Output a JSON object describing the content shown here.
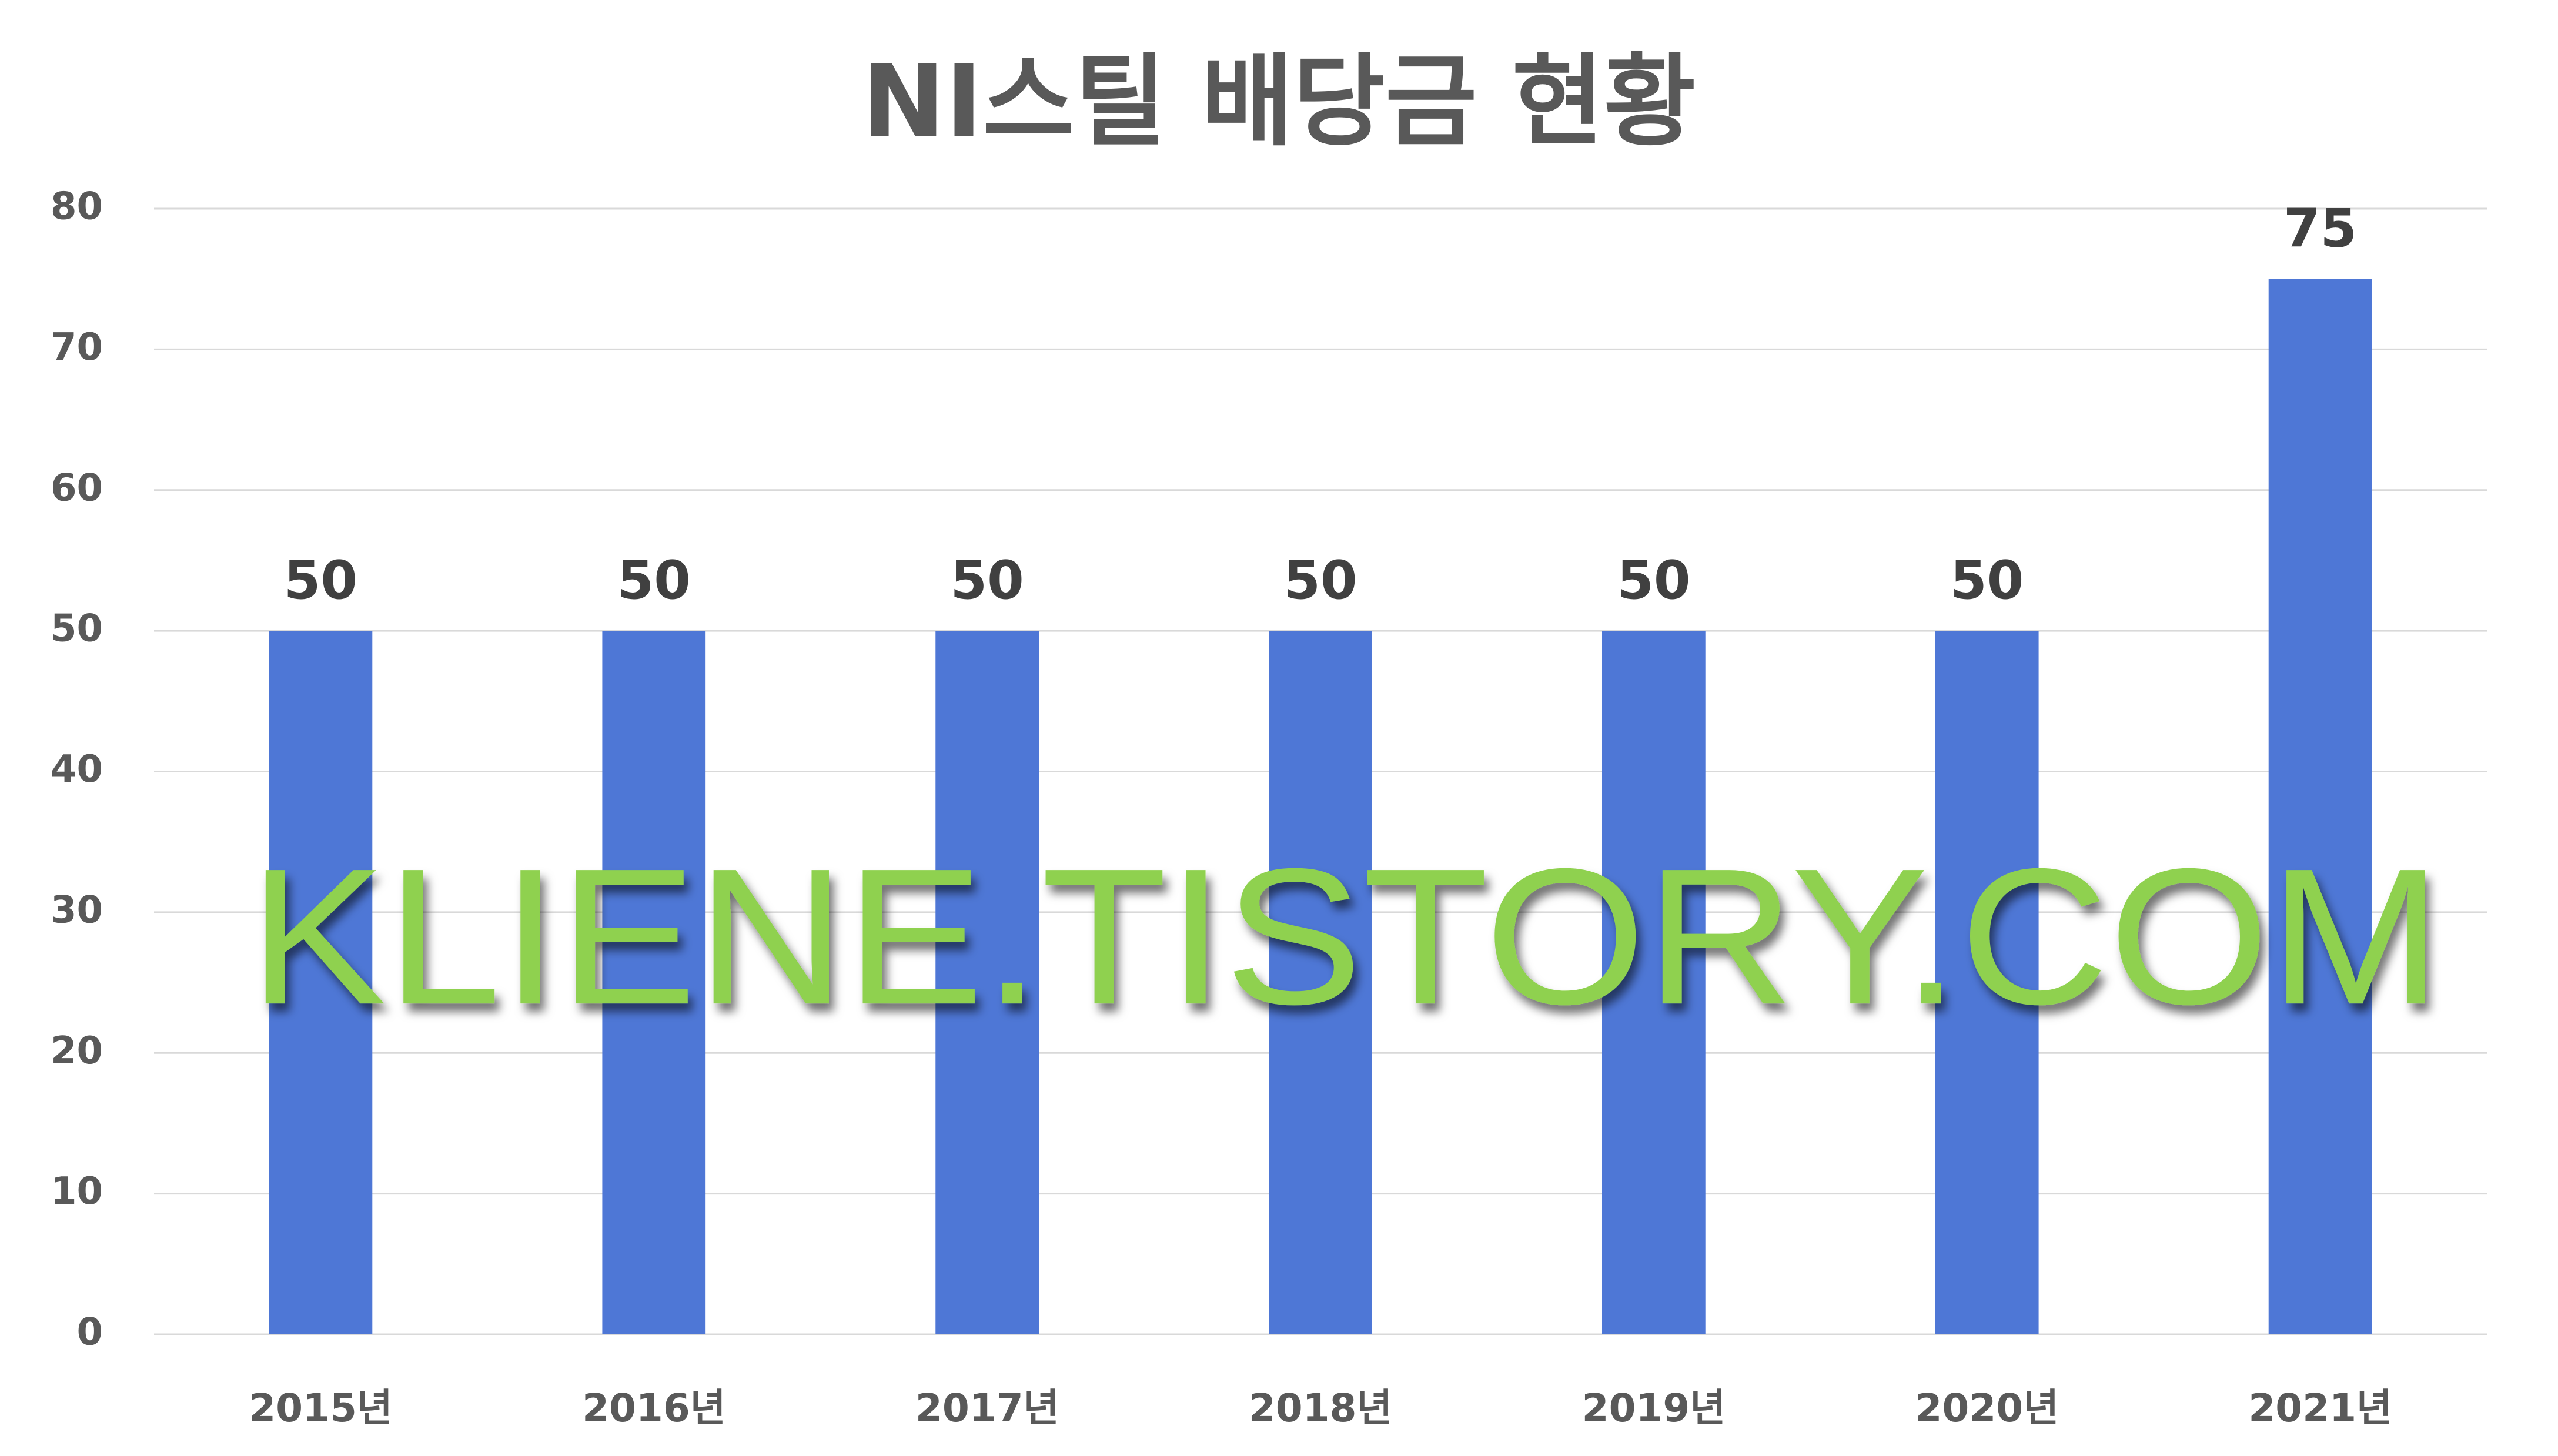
{
  "chart_data": {
    "type": "bar",
    "title": "NI스틸 배당금 현황",
    "categories": [
      "2015년",
      "2016년",
      "2017년",
      "2018년",
      "2019년",
      "2020년",
      "2021년"
    ],
    "values": [
      50,
      50,
      50,
      50,
      50,
      50,
      75
    ],
    "color": "#4e77d6",
    "ylim": [
      0,
      80
    ],
    "yticks": [
      0,
      10,
      20,
      30,
      40,
      50,
      60,
      70,
      80
    ],
    "grid": true,
    "annotation": "KLIENE.TISTORY.COM"
  }
}
